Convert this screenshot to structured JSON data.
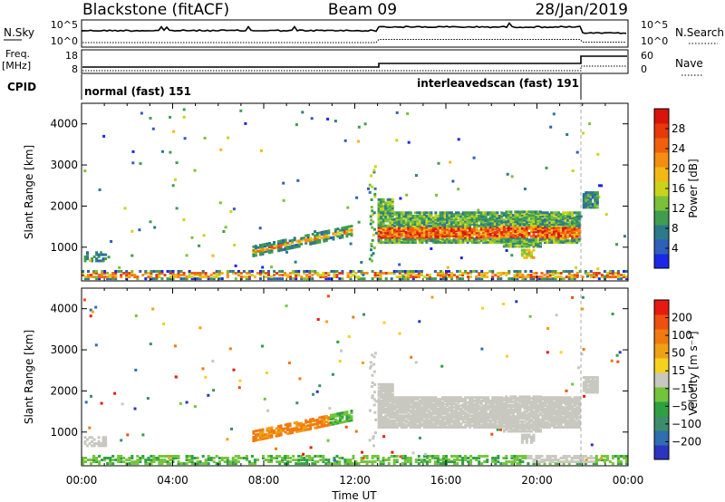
{
  "header": {
    "station": "Blackstone (fitACF)",
    "beam": "Beam 09",
    "date": "28/Jan/2019"
  },
  "params": {
    "nsky_label": "N.Sky",
    "nsky_ticks": [
      "10^5",
      "10^0"
    ],
    "nsearch_label": "N.Search",
    "nsearch_ticks": [
      "10^5",
      "10^0"
    ],
    "freq_label": "Freq.",
    "freq_unit": "[MHz]",
    "freq_ticks": [
      "18",
      "8"
    ],
    "nave_label": "Nave",
    "nave_ticks": [
      "60",
      "0"
    ],
    "cpid_label": "CPID",
    "cpid_segments": [
      {
        "label": "normal (fast) 151",
        "start_hour": 0,
        "end_hour": 13.0
      },
      {
        "label": "interleavedscan (fast) 191",
        "start_hour": 13.0,
        "end_hour": 24
      }
    ]
  },
  "chart_data": [
    {
      "type": "heatmap",
      "name": "power",
      "ylabel": "Slant Range [km]",
      "xlim": [
        0,
        24
      ],
      "ylim": [
        180,
        4500
      ],
      "y_ticks": [
        "1000",
        "2000",
        "3000",
        "4000"
      ],
      "colorbar": {
        "label": "Power [dB]",
        "ticks": [
          "4",
          "8",
          "12",
          "16",
          "20",
          "24",
          "28"
        ],
        "colors": [
          "#1a28e6",
          "#2f5fb8",
          "#2d7a8c",
          "#3f9d4f",
          "#7cc03a",
          "#c9d419",
          "#f2b916",
          "#f58d10",
          "#f0600c",
          "#e63a0a",
          "#d9140a"
        ]
      },
      "features": [
        {
          "desc": "ground scatter band",
          "t0": 0,
          "t1": 24,
          "r0": 250,
          "r1": 450
        },
        {
          "desc": "rising echo",
          "t0": 7.5,
          "t1": 11.8,
          "r0": 900,
          "r1": 1500
        },
        {
          "desc": "main echo band",
          "t0": 13.0,
          "t1": 21.9,
          "r0": 1150,
          "r1": 1900
        },
        {
          "desc": "short echo",
          "t0": 22.0,
          "t1": 22.7,
          "r0": 2000,
          "r1": 2400
        }
      ]
    },
    {
      "type": "heatmap",
      "name": "velocity",
      "ylabel": "Slant Range [km]",
      "xlabel": "Time UT",
      "xlim": [
        0,
        24
      ],
      "ylim": [
        180,
        4500
      ],
      "x_ticks": [
        "00:00",
        "04:00",
        "08:00",
        "12:00",
        "16:00",
        "20:00",
        "00:00"
      ],
      "y_ticks": [
        "1000",
        "2000",
        "3000",
        "4000"
      ],
      "colorbar": {
        "label": "Velocity [m s⁻¹]",
        "ticks": [
          "200",
          "100",
          "50",
          "15",
          "−15",
          "−50",
          "−100",
          "−200"
        ],
        "colors": [
          "#2b35c0",
          "#2f6fb0",
          "#3d8d6c",
          "#2ea043",
          "#72c43a",
          "#c8c8c0",
          "#f5d21e",
          "#f0a014",
          "#f07a10",
          "#ee5010",
          "#e61a10"
        ]
      }
    }
  ]
}
